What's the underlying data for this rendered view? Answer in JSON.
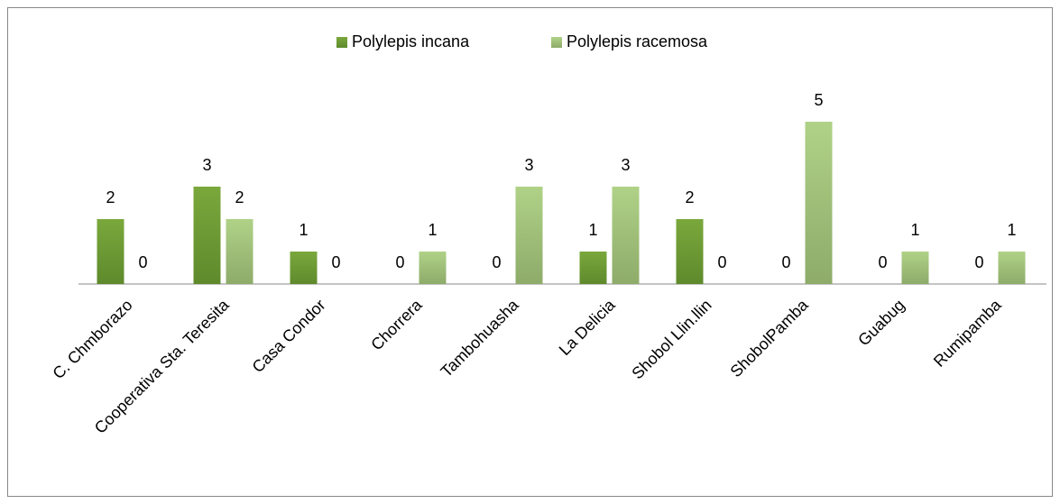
{
  "chart_data": {
    "type": "bar",
    "categories": [
      "C. Chmborazo",
      "Cooperativa Sta. Teresita",
      "Casa Condor",
      "Chorrera",
      "Tambohuasha",
      "La Delicia",
      "Shobol Llin.llin",
      "ShobolPamba",
      "Guabug",
      "Rumipamba"
    ],
    "series": [
      {
        "name": "Polylepis incana",
        "color": "#6f9a35",
        "values": [
          2,
          3,
          1,
          0,
          0,
          1,
          2,
          0,
          0,
          0
        ]
      },
      {
        "name": "Polylepis racemosa",
        "color": "#a4c67c",
        "values": [
          0,
          2,
          0,
          1,
          3,
          3,
          0,
          5,
          1,
          1
        ]
      }
    ],
    "legend": "top"
  }
}
